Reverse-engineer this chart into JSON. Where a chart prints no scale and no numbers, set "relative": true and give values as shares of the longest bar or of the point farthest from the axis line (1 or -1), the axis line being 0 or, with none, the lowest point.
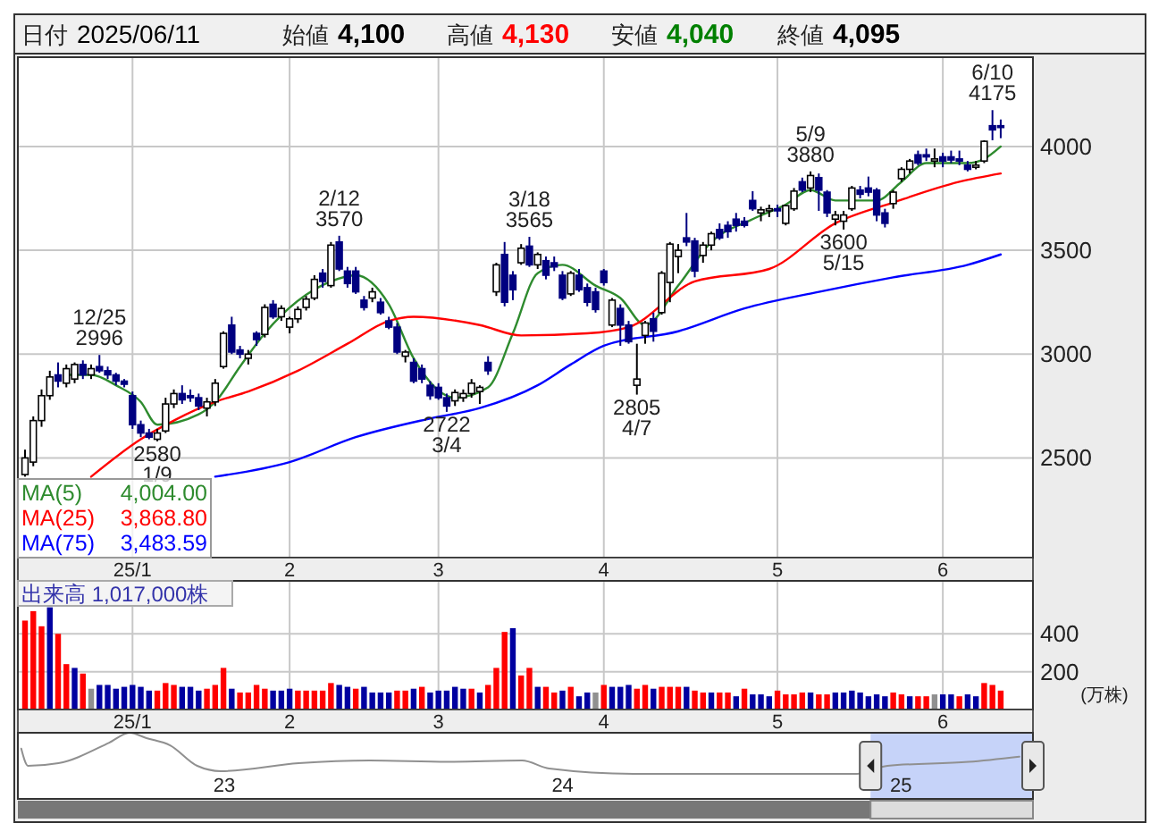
{
  "chart_data": [
    {
      "type": "candlestick",
      "categories": [
        null,
        null,
        null,
        null,
        null,
        null,
        null,
        null,
        null,
        null,
        null,
        null,
        null,
        "25/1",
        null,
        null,
        null,
        null,
        null,
        null,
        null,
        null,
        null,
        null,
        null,
        null,
        null,
        null,
        null,
        null,
        null,
        null,
        "2",
        null,
        null,
        null,
        null,
        null,
        null,
        null,
        null,
        null,
        null,
        null,
        null,
        null,
        null,
        null,
        null,
        null,
        "3",
        null,
        null,
        null,
        null,
        null,
        null,
        null,
        null,
        null,
        null,
        null,
        null,
        null,
        null,
        null,
        null,
        null,
        null,
        null,
        "4",
        null,
        null,
        null,
        null,
        null,
        null,
        null,
        null,
        null,
        null,
        null,
        null,
        null,
        null,
        null,
        null,
        null,
        null,
        null,
        null,
        "5",
        null,
        null,
        null,
        null,
        null,
        null,
        null,
        null,
        null,
        null,
        null,
        null,
        null,
        null,
        null,
        null,
        null,
        null,
        null,
        "6",
        null,
        null,
        null,
        null,
        null,
        null,
        null
      ],
      "ohlc": [
        [
          2420,
          2540,
          2410,
          2500
        ],
        [
          2480,
          2700,
          2460,
          2680
        ],
        [
          2680,
          2830,
          2650,
          2800
        ],
        [
          2800,
          2920,
          2780,
          2890
        ],
        [
          2900,
          2960,
          2840,
          2870
        ],
        [
          2860,
          2950,
          2840,
          2930
        ],
        [
          2880,
          2960,
          2860,
          2950
        ],
        [
          2950,
          2970,
          2880,
          2900
        ],
        [
          2900,
          2950,
          2880,
          2930
        ],
        [
          2940,
          2996,
          2910,
          2920
        ],
        [
          2920,
          2940,
          2880,
          2900
        ],
        [
          2900,
          2910,
          2850,
          2870
        ],
        [
          2870,
          2880,
          2840,
          2855
        ],
        [
          2800,
          2820,
          2640,
          2660
        ],
        [
          2660,
          2680,
          2600,
          2620
        ],
        [
          2620,
          2640,
          2590,
          2600
        ],
        [
          2590,
          2640,
          2580,
          2620
        ],
        [
          2630,
          2790,
          2620,
          2760
        ],
        [
          2760,
          2830,
          2740,
          2810
        ],
        [
          2810,
          2850,
          2760,
          2780
        ],
        [
          2800,
          2830,
          2770,
          2790
        ],
        [
          2790,
          2810,
          2730,
          2750
        ],
        [
          2740,
          2790,
          2700,
          2770
        ],
        [
          2770,
          2880,
          2750,
          2860
        ],
        [
          2940,
          3110,
          2930,
          3100
        ],
        [
          3140,
          3180,
          3000,
          3010
        ],
        [
          3020,
          3040,
          2980,
          3000
        ],
        [
          2980,
          3020,
          2950,
          3000
        ],
        [
          3100,
          3110,
          3040,
          3070
        ],
        [
          3095,
          3240,
          3080,
          3225
        ],
        [
          3240,
          3260,
          3170,
          3180
        ],
        [
          3180,
          3235,
          3160,
          3220
        ],
        [
          3130,
          3180,
          3100,
          3170
        ],
        [
          3170,
          3230,
          3150,
          3215
        ],
        [
          3225,
          3280,
          3210,
          3265
        ],
        [
          3270,
          3380,
          3260,
          3360
        ],
        [
          3390,
          3410,
          3320,
          3350
        ],
        [
          3330,
          3540,
          3320,
          3525
        ],
        [
          3540,
          3570,
          3400,
          3410
        ],
        [
          3400,
          3420,
          3320,
          3340
        ],
        [
          3400,
          3420,
          3290,
          3300
        ],
        [
          3260,
          3280,
          3210,
          3225
        ],
        [
          3270,
          3320,
          3250,
          3300
        ],
        [
          3250,
          3270,
          3190,
          3200
        ],
        [
          3160,
          3180,
          3120,
          3130
        ],
        [
          3130,
          3150,
          3000,
          3010
        ],
        [
          2990,
          3020,
          2960,
          3010
        ],
        [
          2960,
          2980,
          2860,
          2870
        ],
        [
          2930,
          2950,
          2860,
          2880
        ],
        [
          2850,
          2870,
          2780,
          2800
        ],
        [
          2840,
          2860,
          2780,
          2790
        ],
        [
          2790,
          2810,
          2722,
          2750
        ],
        [
          2775,
          2830,
          2750,
          2815
        ],
        [
          2790,
          2830,
          2770,
          2810
        ],
        [
          2810,
          2880,
          2790,
          2860
        ],
        [
          2820,
          2850,
          2760,
          2840
        ],
        [
          2960,
          2990,
          2900,
          2920
        ],
        [
          3300,
          3440,
          3280,
          3430
        ],
        [
          3480,
          3540,
          3230,
          3250
        ],
        [
          3380,
          3400,
          3260,
          3310
        ],
        [
          3440,
          3530,
          3430,
          3510
        ],
        [
          3520,
          3565,
          3420,
          3430
        ],
        [
          3430,
          3490,
          3410,
          3480
        ],
        [
          3450,
          3470,
          3360,
          3380
        ],
        [
          3440,
          3470,
          3400,
          3420
        ],
        [
          3380,
          3400,
          3260,
          3270
        ],
        [
          3290,
          3400,
          3280,
          3390
        ],
        [
          3380,
          3410,
          3300,
          3310
        ],
        [
          3320,
          3340,
          3230,
          3250
        ],
        [
          3300,
          3320,
          3200,
          3215
        ],
        [
          3400,
          3410,
          3330,
          3345
        ],
        [
          3140,
          3270,
          3130,
          3260
        ],
        [
          3220,
          3240,
          3040,
          3140
        ],
        [
          3140,
          3160,
          3050,
          3060
        ],
        [
          2850,
          3050,
          2805,
          2880
        ],
        [
          3090,
          3160,
          3050,
          3150
        ],
        [
          3170,
          3200,
          3060,
          3110
        ],
        [
          3200,
          3400,
          3190,
          3390
        ],
        [
          3345,
          3540,
          3250,
          3530
        ],
        [
          3470,
          3530,
          3390,
          3500
        ],
        [
          3560,
          3680,
          3520,
          3540
        ],
        [
          3545,
          3560,
          3370,
          3400
        ],
        [
          3475,
          3540,
          3440,
          3525
        ],
        [
          3525,
          3590,
          3500,
          3580
        ],
        [
          3600,
          3630,
          3550,
          3560
        ],
        [
          3620,
          3640,
          3560,
          3590
        ],
        [
          3650,
          3680,
          3590,
          3620
        ],
        [
          3640,
          3660,
          3610,
          3620
        ],
        [
          3740,
          3785,
          3690,
          3700
        ],
        [
          3680,
          3710,
          3640,
          3695
        ],
        [
          3690,
          3720,
          3660,
          3700
        ],
        [
          3700,
          3720,
          3660,
          3690
        ],
        [
          3630,
          3720,
          3620,
          3715
        ],
        [
          3700,
          3800,
          3690,
          3785
        ],
        [
          3830,
          3850,
          3780,
          3790
        ],
        [
          3800,
          3880,
          3780,
          3860
        ],
        [
          3850,
          3870,
          3690,
          3790
        ],
        [
          3780,
          3790,
          3660,
          3680
        ],
        [
          3650,
          3690,
          3620,
          3670
        ],
        [
          3640,
          3690,
          3600,
          3670
        ],
        [
          3700,
          3810,
          3690,
          3800
        ],
        [
          3790,
          3810,
          3750,
          3770
        ],
        [
          3800,
          3855,
          3760,
          3780
        ],
        [
          3790,
          3800,
          3640,
          3670
        ],
        [
          3680,
          3700,
          3610,
          3630
        ],
        [
          3725,
          3790,
          3700,
          3780
        ],
        [
          3845,
          3900,
          3830,
          3890
        ],
        [
          3890,
          3940,
          3870,
          3930
        ],
        [
          3960,
          3980,
          3910,
          3920
        ],
        [
          3960,
          3990,
          3930,
          3950
        ],
        [
          3930,
          3990,
          3900,
          3940
        ],
        [
          3950,
          3970,
          3900,
          3930
        ],
        [
          3950,
          3980,
          3920,
          3935
        ],
        [
          3940,
          3980,
          3910,
          3930
        ],
        [
          3910,
          3930,
          3880,
          3890
        ],
        [
          3900,
          3930,
          3890,
          3910
        ],
        [
          3930,
          4030,
          3920,
          4025
        ],
        [
          4100,
          4175,
          4030,
          4080
        ],
        [
          4100,
          4130,
          4040,
          4095
        ]
      ],
      "series": [
        {
          "type": "line",
          "name": "MA(5) 4,004.00",
          "color": "#2e8b2e",
          "values": [
            null,
            null,
            null,
            null,
            null,
            2900,
            null,
            null,
            2900,
            null,
            null,
            2850,
            null,
            null,
            2770,
            null,
            2660,
            null,
            null,
            null,
            null,
            2710,
            null,
            2770,
            null,
            null,
            2940,
            null,
            null,
            3100,
            null,
            null,
            null,
            null,
            null,
            null,
            null,
            3350,
            null,
            null,
            3380,
            null,
            null,
            null,
            3240,
            null,
            null,
            2980,
            null,
            null,
            null,
            null,
            2790,
            null,
            null,
            null,
            2840,
            null,
            null,
            3100,
            null,
            null,
            3390,
            null,
            null,
            3430,
            null,
            null,
            null,
            3330,
            null,
            null,
            3270,
            null,
            null,
            3140,
            null,
            null,
            null,
            3330,
            null,
            null,
            null,
            3540,
            null,
            null,
            null,
            null,
            3650,
            null,
            null,
            null,
            3720,
            null,
            null,
            3790,
            null,
            null,
            3740,
            null,
            null,
            null,
            null,
            3740,
            null,
            null,
            3830,
            null,
            null,
            3920,
            null,
            null,
            null,
            null,
            3920,
            null,
            3940,
            null,
            4000
          ]
        },
        {
          "type": "line",
          "name": "MA(25) 3,868.80",
          "color": "#ff0000",
          "values": [
            null,
            null,
            null,
            null,
            null,
            null,
            null,
            null,
            2410,
            null,
            null,
            null,
            null,
            null,
            2590,
            null,
            null,
            null,
            2680,
            null,
            null,
            null,
            null,
            2770,
            null,
            null,
            null,
            2820,
            null,
            null,
            null,
            null,
            null,
            2920,
            null,
            null,
            null,
            null,
            null,
            3050,
            null,
            null,
            null,
            null,
            3160,
            null,
            null,
            3180,
            null,
            null,
            null,
            null,
            null,
            null,
            null,
            3140,
            null,
            null,
            null,
            null,
            3090,
            null,
            null,
            null,
            null,
            null,
            null,
            null,
            3100,
            null,
            null,
            null,
            null,
            3130,
            null,
            null,
            null,
            null,
            null,
            null,
            null,
            3350,
            null,
            null,
            null,
            null,
            null,
            null,
            null,
            null,
            3410,
            null,
            null,
            null,
            null,
            null,
            null,
            null,
            3630,
            null,
            null,
            null,
            null,
            null,
            null,
            3730,
            null,
            null,
            null,
            null,
            null,
            null,
            null,
            3830,
            null,
            null,
            null,
            null,
            3870
          ]
        },
        {
          "type": "line",
          "name": "MA(75) 3,483.59",
          "color": "#0000ff",
          "values": [
            null,
            null,
            null,
            null,
            null,
            null,
            null,
            null,
            null,
            null,
            null,
            null,
            null,
            null,
            null,
            null,
            null,
            null,
            null,
            null,
            null,
            null,
            null,
            2410,
            null,
            null,
            null,
            null,
            null,
            null,
            null,
            null,
            2480,
            null,
            null,
            null,
            null,
            null,
            null,
            null,
            2600,
            null,
            null,
            null,
            null,
            null,
            null,
            null,
            null,
            2690,
            null,
            null,
            null,
            null,
            null,
            2740,
            null,
            null,
            null,
            null,
            null,
            null,
            2850,
            null,
            null,
            null,
            2950,
            null,
            null,
            null,
            3040,
            null,
            null,
            null,
            null,
            null,
            null,
            null,
            null,
            3110,
            null,
            null,
            null,
            null,
            null,
            null,
            null,
            3220,
            null,
            null,
            null,
            null,
            null,
            null,
            null,
            null,
            3300,
            null,
            null,
            null,
            null,
            null,
            null,
            null,
            null,
            3370,
            null,
            null,
            null,
            null,
            null,
            null,
            null,
            null,
            3430,
            null,
            null,
            null,
            3480
          ]
        }
      ],
      "ylim": [
        2020,
        4430
      ],
      "yticks": [
        2500,
        3000,
        3500,
        4000
      ],
      "grid": true,
      "legend": "bottom left",
      "annotations": [
        "日付 2025/06/11",
        "始値 4,100",
        "高値 4,130",
        "安値 4,040",
        "終値 4,095",
        {
          "text": "12/25 2996",
          "y": 2996
        },
        {
          "text": "2580 1/9",
          "y": 2580
        },
        {
          "text": "2/12 3570",
          "y": 3570
        },
        {
          "text": "2722 3/4",
          "y": 2722
        },
        {
          "text": "3/18 3565",
          "y": 3565
        },
        {
          "text": "2805 4/7",
          "y": 2805
        },
        {
          "text": "5/9 3880",
          "y": 3880
        },
        {
          "text": "3600 5/15",
          "y": 3600
        },
        {
          "text": "6/10 4175",
          "y": 4175
        }
      ]
    },
    {
      "type": "bar",
      "title": "出来高 1,017,000株",
      "ylabel": "(万株)",
      "categories": [
        null,
        null,
        null,
        null,
        null,
        null,
        null,
        null,
        null,
        null,
        null,
        null,
        null,
        "25/1",
        null,
        null,
        null,
        null,
        null,
        null,
        null,
        null,
        null,
        null,
        null,
        null,
        null,
        null,
        null,
        null,
        null,
        null,
        "2",
        null,
        null,
        null,
        null,
        null,
        null,
        null,
        null,
        null,
        null,
        null,
        null,
        null,
        null,
        null,
        null,
        null,
        "3",
        null,
        null,
        null,
        null,
        null,
        null,
        null,
        null,
        null,
        null,
        null,
        null,
        null,
        null,
        null,
        null,
        null,
        null,
        null,
        "4",
        null,
        null,
        null,
        null,
        null,
        null,
        null,
        null,
        null,
        null,
        null,
        null,
        null,
        null,
        null,
        null,
        null,
        null,
        null,
        null,
        "5",
        null,
        null,
        null,
        null,
        null,
        null,
        null,
        null,
        null,
        null,
        null,
        null,
        null,
        null,
        null,
        null,
        null,
        null,
        null,
        "6",
        null,
        null,
        null,
        null,
        null,
        null,
        null
      ],
      "values": [
        470,
        520,
        440,
        540,
        400,
        240,
        220,
        190,
        110,
        130,
        130,
        110,
        120,
        130,
        120,
        100,
        100,
        140,
        130,
        120,
        120,
        100,
        110,
        130,
        220,
        110,
        90,
        90,
        130,
        110,
        100,
        100,
        110,
        100,
        100,
        100,
        100,
        140,
        130,
        120,
        110,
        120,
        90,
        90,
        90,
        100,
        100,
        110,
        120,
        90,
        100,
        100,
        120,
        110,
        110,
        90,
        130,
        220,
        410,
        430,
        180,
        220,
        120,
        120,
        90,
        100,
        120,
        70,
        90,
        90,
        130,
        120,
        120,
        130,
        110,
        130,
        110,
        120,
        120,
        120,
        120,
        100,
        90,
        90,
        90,
        90,
        70,
        110,
        80,
        80,
        70,
        100,
        80,
        80,
        90,
        90,
        80,
        80,
        90,
        90,
        100,
        90,
        70,
        80,
        70,
        90,
        80,
        70,
        70,
        70,
        80,
        80,
        80,
        70,
        80,
        70,
        140,
        130,
        100
      ],
      "colors": [
        "#ff0000",
        "#ff0000",
        "#ff0000",
        "#0000a0",
        "#ff0000",
        "#ff0000",
        "#0000a0",
        "#ff0000",
        "#909090",
        "#0000a0",
        "#0000a0",
        "#0000a0",
        "#0000a0",
        "#0000a0",
        "#0000a0",
        "#0000a0",
        "#ff0000",
        "#ff0000",
        "#ff0000",
        "#0000a0",
        "#0000a0",
        "#0000a0",
        "#ff0000",
        "#ff0000",
        "#ff0000",
        "#0000a0",
        "#ff0000",
        "#ff0000",
        "#ff0000",
        "#ff0000",
        "#0000a0",
        "#0000a0",
        "#0000a0",
        "#ff0000",
        "#ff0000",
        "#ff0000",
        "#ff0000",
        "#ff0000",
        "#0000a0",
        "#0000a0",
        "#ff0000",
        "#0000a0",
        "#0000a0",
        "#0000a0",
        "#0000a0",
        "#ff0000",
        "#ff0000",
        "#0000a0",
        "#ff0000",
        "#0000a0",
        "#0000a0",
        "#0000a0",
        "#0000a0",
        "#0000a0",
        "#ff0000",
        "#0000a0",
        "#ff0000",
        "#ff0000",
        "#ff0000",
        "#0000a0",
        "#ff0000",
        "#ff0000",
        "#0000a0",
        "#ff0000",
        "#ff0000",
        "#0000a0",
        "#ff0000",
        "#0000a0",
        "#0000a0",
        "#909090",
        "#ff0000",
        "#0000a0",
        "#0000a0",
        "#0000a0",
        "#ff0000",
        "#ff0000",
        "#0000a0",
        "#ff0000",
        "#ff0000",
        "#ff0000",
        "#0000a0",
        "#ff0000",
        "#ff0000",
        "#0000a0",
        "#ff0000",
        "#ff0000",
        "#0000a0",
        "#ff0000",
        "#0000a0",
        "#0000a0",
        "#0000a0",
        "#ff0000",
        "#ff0000",
        "#ff0000",
        "#ff0000",
        "#0000a0",
        "#ff0000",
        "#ff0000",
        "#0000a0",
        "#0000a0",
        "#0000a0",
        "#0000a0",
        "#0000a0",
        "#0000a0",
        "#0000a0",
        "#ff0000",
        "#ff0000",
        "#0000a0",
        "#ff0000",
        "#ff0000",
        "#909090",
        "#0000a0",
        "#0000a0",
        "#ff0000",
        "#0000a0",
        "#0000a0",
        "#ff0000",
        "#ff0000",
        "#ff0000"
      ],
      "ylim": [
        0,
        680
      ],
      "yticks": [
        200,
        400
      ],
      "grid": true
    },
    {
      "type": "line",
      "relative": true,
      "color": "#909090",
      "tick_labels": "x",
      "x": [
        2022.4,
        2022.42,
        2022.51,
        2022.66,
        2022.72,
        2022.77,
        2022.84,
        2022.92,
        2022.99,
        2023.22,
        2023.43,
        2023.66,
        2023.88,
        2023.96,
        2024.21,
        2024.54,
        2024.87,
        2024.96,
        2025.2,
        2025.35
      ],
      "values": [
        0.76,
        0.5,
        0.54,
        0.85,
        1,
        0.92,
        0.81,
        0.5,
        0.42,
        0.54,
        0.58,
        0.56,
        0.58,
        0.46,
        0.38,
        0.38,
        0.38,
        0.5,
        0.56,
        0.64
      ],
      "xlim": [
        2022.39,
        2025.39
      ],
      "xticks": [
        {
          "value": 2023,
          "label": "23"
        },
        {
          "value": 2024,
          "label": "24"
        },
        {
          "value": 2025,
          "label": "25"
        }
      ],
      "bands": [
        {
          "axis": "x",
          "from": 2024.91,
          "to": 2025.39,
          "color": "#b8c8f8"
        }
      ]
    }
  ]
}
